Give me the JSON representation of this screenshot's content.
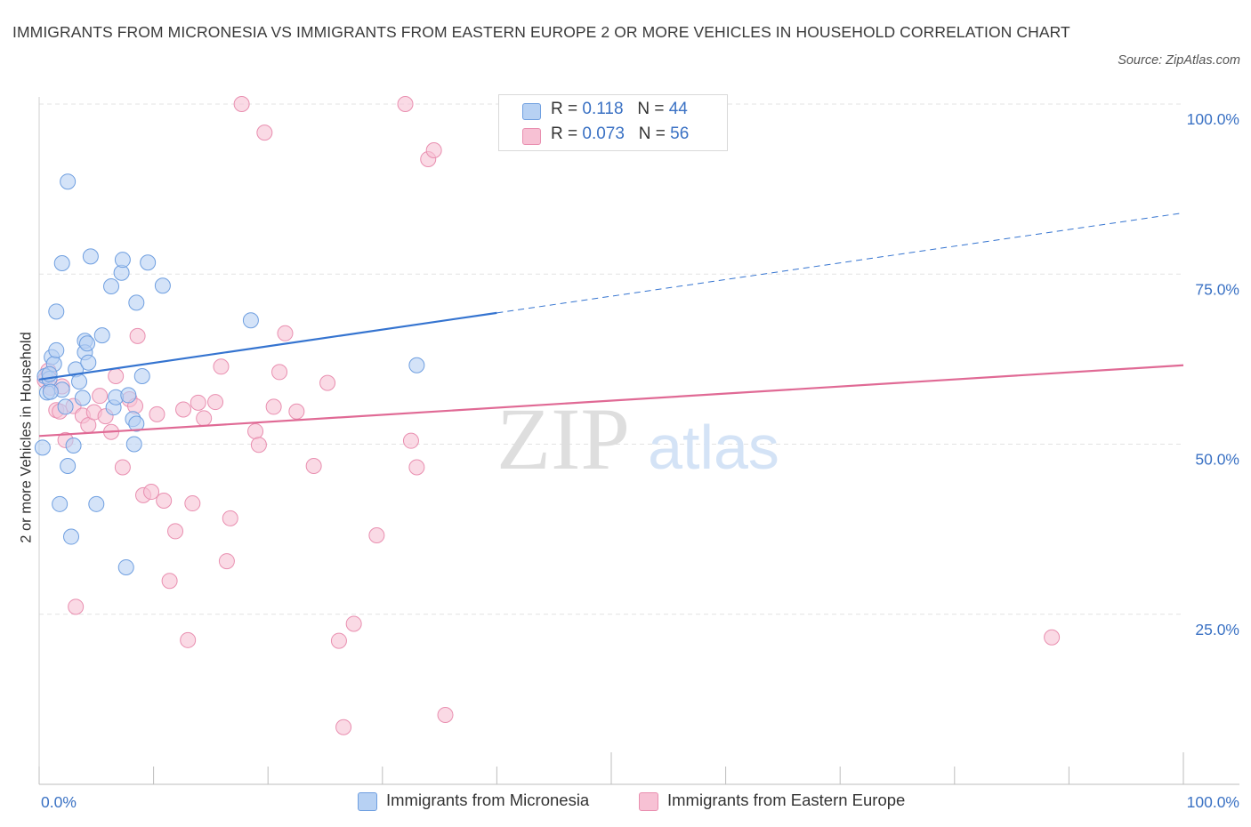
{
  "title": "IMMIGRANTS FROM MICRONESIA VS IMMIGRANTS FROM EASTERN EUROPE 2 OR MORE VEHICLES IN HOUSEHOLD CORRELATION CHART",
  "source": "Source: ZipAtlas.com",
  "watermark": {
    "zip": "ZIP",
    "atlas": "atlas"
  },
  "colors": {
    "blue_fill": "#b7d1f3",
    "blue_stroke": "#6f9fe0",
    "blue_line": "#3574d0",
    "pink_fill": "#f7c1d4",
    "pink_stroke": "#e98fb0",
    "pink_line": "#e06a95",
    "axis_text": "#3b72c4",
    "grid": "#e3e3e3"
  },
  "legend": {
    "rows": [
      {
        "r_label": "R = ",
        "r_value": "0.118",
        "n_label": "N = ",
        "n_value": "44",
        "series": "blue"
      },
      {
        "r_label": "R = ",
        "r_value": "0.073",
        "n_label": "N = ",
        "n_value": "56",
        "series": "pink"
      }
    ]
  },
  "chart_data": {
    "type": "scatter",
    "title": "IMMIGRANTS FROM MICRONESIA VS IMMIGRANTS FROM EASTERN EUROPE 2 OR MORE VEHICLES IN HOUSEHOLD CORRELATION CHART",
    "xlabel": "",
    "ylabel": "2 or more Vehicles in Household",
    "xlim": [
      0,
      100
    ],
    "ylim": [
      0,
      100
    ],
    "x_tick_labels": [
      "0.0%",
      "100.0%"
    ],
    "y_tick_values": [
      25,
      50,
      75,
      100
    ],
    "y_tick_labels": [
      "25.0%",
      "50.0%",
      "75.0%",
      "100.0%"
    ],
    "grid": true,
    "legend_position": "bottom",
    "series": [
      {
        "name": "Immigrants from Micronesia",
        "color": "blue",
        "R": 0.118,
        "N": 44,
        "trend": {
          "x0": 0,
          "y0": 59.5,
          "x1": 40,
          "y1": 69.3,
          "x_dash_end": 100,
          "y_dash_end": 84.0
        },
        "points": [
          [
            0.3,
            49.5
          ],
          [
            0.5,
            60
          ],
          [
            0.7,
            57.6
          ],
          [
            0.9,
            59.6
          ],
          [
            1.1,
            62.8
          ],
          [
            1.3,
            61.8
          ],
          [
            1.5,
            63.8
          ],
          [
            1.5,
            69.5
          ],
          [
            1.8,
            41.2
          ],
          [
            2.0,
            58.0
          ],
          [
            2.0,
            76.6
          ],
          [
            2.3,
            55.5
          ],
          [
            2.5,
            46.8
          ],
          [
            2.5,
            88.6
          ],
          [
            2.8,
            36.4
          ],
          [
            3.0,
            49.8
          ],
          [
            3.2,
            61.0
          ],
          [
            3.5,
            59.2
          ],
          [
            3.8,
            56.8
          ],
          [
            4.0,
            65.2
          ],
          [
            4.0,
            63.5
          ],
          [
            4.2,
            64.8
          ],
          [
            4.3,
            62.0
          ],
          [
            4.5,
            77.6
          ],
          [
            5.0,
            41.2
          ],
          [
            5.5,
            66.0
          ],
          [
            6.3,
            73.2
          ],
          [
            6.5,
            55.4
          ],
          [
            6.7,
            56.9
          ],
          [
            7.2,
            75.2
          ],
          [
            7.3,
            77.1
          ],
          [
            7.6,
            31.9
          ],
          [
            7.8,
            57.2
          ],
          [
            8.2,
            53.7
          ],
          [
            8.3,
            50.0
          ],
          [
            8.5,
            53.0
          ],
          [
            8.5,
            70.8
          ],
          [
            9.0,
            60.0
          ],
          [
            9.5,
            76.7
          ],
          [
            10.8,
            73.3
          ],
          [
            18.5,
            68.2
          ],
          [
            33.0,
            61.6
          ],
          [
            0.9,
            60.3
          ],
          [
            1.0,
            57.7
          ]
        ]
      },
      {
        "name": "Immigrants from Eastern Europe",
        "color": "pink",
        "R": 0.073,
        "N": 56,
        "trend": {
          "x0": 0,
          "y0": 51.2,
          "x1": 100,
          "y1": 61.6
        },
        "points": [
          [
            0.5,
            59.4
          ],
          [
            0.8,
            60.8
          ],
          [
            1.0,
            58.3
          ],
          [
            1.5,
            55.0
          ],
          [
            1.8,
            54.8
          ],
          [
            2.0,
            58.5
          ],
          [
            2.3,
            50.6
          ],
          [
            3.0,
            55.6
          ],
          [
            3.2,
            26.1
          ],
          [
            3.8,
            54.2
          ],
          [
            4.3,
            52.8
          ],
          [
            4.8,
            54.7
          ],
          [
            5.3,
            57.1
          ],
          [
            5.8,
            54.1
          ],
          [
            6.3,
            51.8
          ],
          [
            6.7,
            60.0
          ],
          [
            7.3,
            46.6
          ],
          [
            7.9,
            56.6
          ],
          [
            8.4,
            55.6
          ],
          [
            8.6,
            65.9
          ],
          [
            9.1,
            42.5
          ],
          [
            9.8,
            43.0
          ],
          [
            10.3,
            54.4
          ],
          [
            10.9,
            41.7
          ],
          [
            11.4,
            29.9
          ],
          [
            11.9,
            37.2
          ],
          [
            12.6,
            55.1
          ],
          [
            13.0,
            21.2
          ],
          [
            13.4,
            41.3
          ],
          [
            13.9,
            56.1
          ],
          [
            14.4,
            53.8
          ],
          [
            15.4,
            56.2
          ],
          [
            15.9,
            61.4
          ],
          [
            16.4,
            32.8
          ],
          [
            16.7,
            39.1
          ],
          [
            17.7,
            100.0
          ],
          [
            18.9,
            51.9
          ],
          [
            19.2,
            49.9
          ],
          [
            19.7,
            95.8
          ],
          [
            20.5,
            55.5
          ],
          [
            21.0,
            60.6
          ],
          [
            21.5,
            66.3
          ],
          [
            22.5,
            54.8
          ],
          [
            24.0,
            46.8
          ],
          [
            25.2,
            59.0
          ],
          [
            26.2,
            21.1
          ],
          [
            26.6,
            8.4
          ],
          [
            27.5,
            23.6
          ],
          [
            29.5,
            36.6
          ],
          [
            32.0,
            100.0
          ],
          [
            32.5,
            50.5
          ],
          [
            33.0,
            46.6
          ],
          [
            34.0,
            91.9
          ],
          [
            34.5,
            93.2
          ],
          [
            35.5,
            10.2
          ],
          [
            88.5,
            21.6
          ]
        ]
      }
    ]
  },
  "bottom_legend": [
    {
      "label": "Immigrants from Micronesia",
      "series": "blue"
    },
    {
      "label": "Immigrants from Eastern Europe",
      "series": "pink"
    }
  ]
}
